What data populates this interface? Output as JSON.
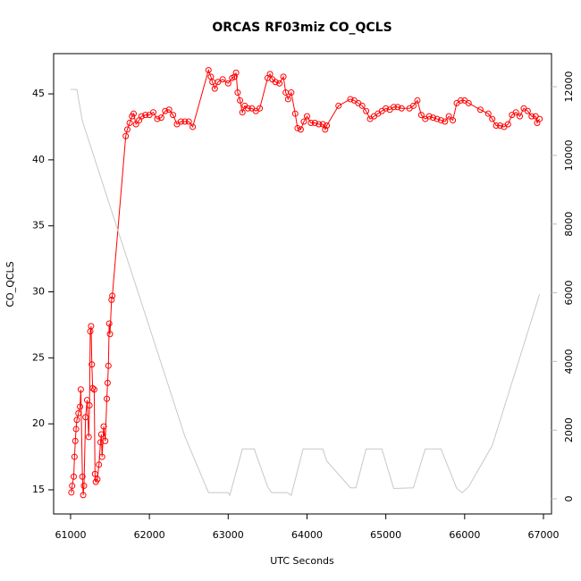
{
  "chart_data": {
    "type": "line",
    "title": "ORCAS RF03miz CO_QCLS",
    "x_label": "UTC Seconds",
    "y_label": "CO_QCLS",
    "xlim": [
      60785,
      67102
    ],
    "xticks": [
      61000,
      62000,
      63000,
      64000,
      65000,
      66000,
      67000
    ],
    "ylim": [
      13.17,
      48.05
    ],
    "yticks": [
      15,
      20,
      25,
      30,
      35,
      40,
      45
    ],
    "y2lim": [
      -442,
      12963
    ],
    "y2ticks": [
      0,
      2000,
      4000,
      6000,
      8000,
      10000,
      12000
    ],
    "series": [
      {
        "color": "#ff0000",
        "marker": "circle",
        "x": [
          61010,
          61020,
          61040,
          61050,
          61060,
          61070,
          61080,
          61100,
          61120,
          61130,
          61150,
          61160,
          61170,
          61190,
          61210,
          61230,
          61240,
          61250,
          61260,
          61270,
          61280,
          61300,
          61310,
          61320,
          61340,
          61360,
          61380,
          61390,
          61400,
          61420,
          61440,
          61460,
          61470,
          61480,
          61490,
          61500,
          61520,
          61530,
          61700,
          61720,
          61750,
          61780,
          61800,
          61830,
          61870,
          61900,
          61950,
          62000,
          62050,
          62100,
          62150,
          62200,
          62250,
          62300,
          62350,
          62400,
          62450,
          62500,
          62550,
          62750,
          62780,
          62800,
          62830,
          62870,
          62930,
          63000,
          63050,
          63080,
          63100,
          63120,
          63150,
          63180,
          63210,
          63250,
          63300,
          63350,
          63400,
          63500,
          63530,
          63560,
          63600,
          63650,
          63700,
          63730,
          63760,
          63800,
          63850,
          63880,
          63920,
          63960,
          64000,
          64050,
          64100,
          64150,
          64200,
          64230,
          64250,
          64400,
          64550,
          64600,
          64650,
          64700,
          64750,
          64800,
          64850,
          64900,
          64950,
          65000,
          65050,
          65100,
          65150,
          65200,
          65300,
          65350,
          65400,
          65450,
          65500,
          65550,
          65600,
          65650,
          65700,
          65750,
          65800,
          65850,
          65900,
          65950,
          66000,
          66050,
          66200,
          66300,
          66350,
          66400,
          66450,
          66500,
          66550,
          66600,
          66650,
          66700,
          66750,
          66800,
          66850,
          66900,
          66920,
          66950
        ],
        "values": [
          14.8,
          15.3,
          16,
          17.5,
          18.7,
          19.6,
          20.3,
          20.8,
          21.3,
          22.6,
          16,
          14.6,
          15.3,
          20.5,
          21.8,
          19,
          21.4,
          27,
          27.4,
          24.5,
          22.7,
          22.6,
          16.2,
          15.6,
          15.8,
          16.9,
          18.6,
          19.2,
          17.5,
          19.8,
          18.7,
          21.9,
          23.1,
          24.4,
          27.6,
          26.8,
          29.4,
          29.7,
          41.8,
          42.3,
          42.8,
          43.3,
          43.5,
          42.7,
          43,
          43.3,
          43.4,
          43.4,
          43.6,
          43.1,
          43.2,
          43.7,
          43.8,
          43.4,
          42.7,
          42.9,
          42.9,
          42.9,
          42.5,
          46.8,
          46.3,
          45.9,
          45.4,
          45.9,
          46.1,
          45.8,
          46.2,
          46.3,
          46.6,
          45.1,
          44.5,
          43.6,
          44.1,
          43.9,
          43.9,
          43.7,
          43.9,
          46.2,
          46.5,
          46.1,
          45.9,
          45.8,
          46.3,
          45.1,
          44.6,
          45.1,
          43.5,
          42.4,
          42.3,
          42.9,
          43.3,
          42.8,
          42.8,
          42.7,
          42.7,
          42.3,
          42.6,
          44.1,
          44.6,
          44.5,
          44.3,
          44.1,
          43.7,
          43.1,
          43.3,
          43.5,
          43.7,
          43.9,
          43.8,
          44.0,
          44.0,
          43.9,
          43.9,
          44.1,
          44.5,
          43.4,
          43.1,
          43.3,
          43.2,
          43.1,
          43.0,
          42.9,
          43.3,
          43.0,
          44.3,
          44.5,
          44.5,
          44.3,
          43.8,
          43.5,
          43.1,
          42.6,
          42.6,
          42.5,
          42.7,
          43.4,
          43.6,
          43.3,
          43.9,
          43.7,
          43.3,
          43.3,
          42.8,
          43.1
        ]
      },
      {
        "color": "#c8c8c8",
        "axis": "y2",
        "x": [
          61000,
          61080,
          61150,
          62450,
          62750,
          63000,
          63020,
          63180,
          63330,
          63500,
          63550,
          63750,
          63800,
          63950,
          64200,
          64250,
          64550,
          64620,
          64750,
          64950,
          65100,
          65350,
          65400,
          65500,
          65700,
          65900,
          65970,
          66050,
          66350,
          66950
        ],
        "values": [
          11920,
          11920,
          11000,
          1820,
          180,
          180,
          100,
          1450,
          1450,
          350,
          180,
          180,
          100,
          1450,
          1450,
          1100,
          320,
          320,
          1450,
          1450,
          300,
          320,
          700,
          1450,
          1450,
          300,
          180,
          350,
          1550,
          5950
        ]
      }
    ]
  }
}
